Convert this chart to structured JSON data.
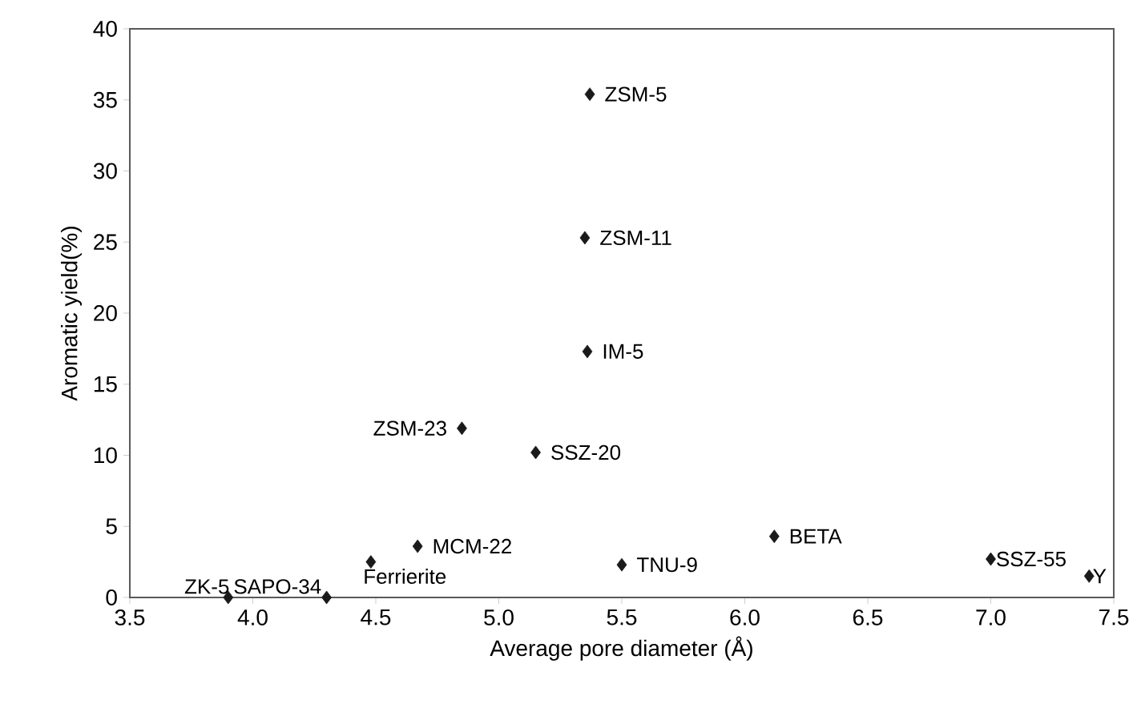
{
  "chart_data": {
    "type": "scatter",
    "xlabel": "Average pore diameter (Å)",
    "ylabel": "Aromatic yield(%)",
    "x": [
      3.9,
      4.3,
      4.48,
      4.67,
      4.85,
      5.15,
      5.37,
      5.35,
      5.36,
      5.5,
      6.12,
      7.0,
      7.4
    ],
    "series": [
      {
        "color": "#1a1a1a",
        "values": [
          0,
          0,
          2.5,
          3.6,
          11.9,
          10.2,
          35.4,
          25.3,
          17.3,
          2.3,
          4.3,
          2.7,
          1.5
        ]
      }
    ],
    "marker": "diamond",
    "grid": false,
    "xlim": [
      3.5,
      7.5
    ],
    "ylim": [
      0,
      40
    ],
    "xticks": [
      {
        "value": 3.5,
        "label": "3.5"
      },
      {
        "value": 4,
        "label": "4.0"
      },
      {
        "value": 4.5,
        "label": "4.5"
      },
      {
        "value": 5,
        "label": "5.0"
      },
      {
        "value": 5.5,
        "label": "5.5"
      },
      {
        "value": 6,
        "label": "6.0"
      },
      {
        "value": 6.5,
        "label": "6.5"
      },
      {
        "value": 7,
        "label": "7.0"
      },
      {
        "value": 7.5,
        "label": "7.5"
      }
    ],
    "yticks": [
      0,
      5,
      10,
      15,
      20,
      25,
      30,
      35,
      40
    ],
    "annotations": [
      {
        "text": "ZK-5",
        "x": 3.9,
        "y": 0
      },
      {
        "text": "SAPO-34",
        "x": 4.3,
        "y": 0
      },
      {
        "text": "Ferrierite",
        "x": 4.48,
        "y": 2.5
      },
      {
        "text": "MCM-22",
        "x": 4.67,
        "y": 3.6
      },
      {
        "text": "ZSM-23",
        "x": 4.85,
        "y": 11.9
      },
      {
        "text": "SSZ-20",
        "x": 5.15,
        "y": 10.2
      },
      {
        "text": "ZSM-5",
        "x": 5.37,
        "y": 35.4
      },
      {
        "text": "ZSM-11",
        "x": 5.35,
        "y": 25.3
      },
      {
        "text": "IM-5",
        "x": 5.36,
        "y": 17.3
      },
      {
        "text": "TNU-9",
        "x": 5.5,
        "y": 2.3
      },
      {
        "text": "BETA",
        "x": 6.12,
        "y": 4.3
      },
      {
        "text": "SSZ-55",
        "x": 7.0,
        "y": 2.7
      },
      {
        "text": "Y",
        "x": 7.4,
        "y": 1.5
      }
    ]
  }
}
